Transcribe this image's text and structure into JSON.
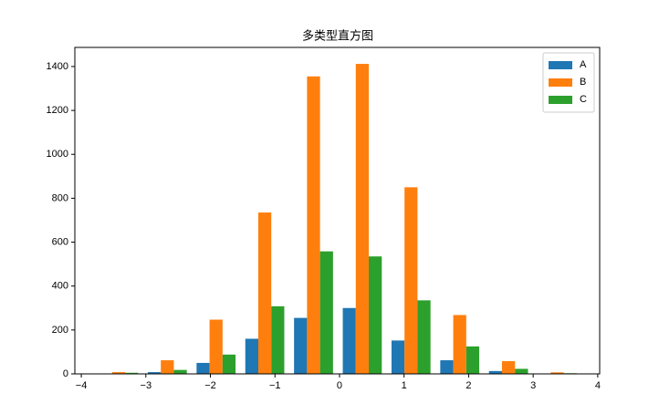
{
  "chart_data": {
    "type": "histogram",
    "title": "多类型直方图",
    "bins": [
      -3.8,
      -3.045,
      -2.29,
      -1.535,
      -0.78,
      -0.025,
      0.73,
      1.485,
      2.24,
      2.995,
      3.75
    ],
    "series": [
      {
        "name": "A",
        "color": "#1f77b4",
        "values": [
          2,
          8,
          50,
          160,
          255,
          300,
          152,
          62,
          13,
          1
        ]
      },
      {
        "name": "B",
        "color": "#ff7f0e",
        "values": [
          8,
          62,
          247,
          735,
          1355,
          1412,
          850,
          268,
          58,
          7
        ]
      },
      {
        "name": "C",
        "color": "#2ca02c",
        "values": [
          5,
          18,
          88,
          308,
          558,
          535,
          335,
          125,
          23,
          3
        ]
      }
    ],
    "xlim": [
      -4.1,
      4.03
    ],
    "ylim": [
      0,
      1487
    ],
    "xticks": [
      {
        "value": -4,
        "label": "−4"
      },
      {
        "value": -3,
        "label": "−3"
      },
      {
        "value": -2,
        "label": "−2"
      },
      {
        "value": -1,
        "label": "−1"
      },
      0,
      1,
      2,
      3,
      4
    ],
    "yticks": [
      0,
      200,
      400,
      600,
      800,
      1000,
      1200,
      1400
    ],
    "legend": "upper-right"
  }
}
